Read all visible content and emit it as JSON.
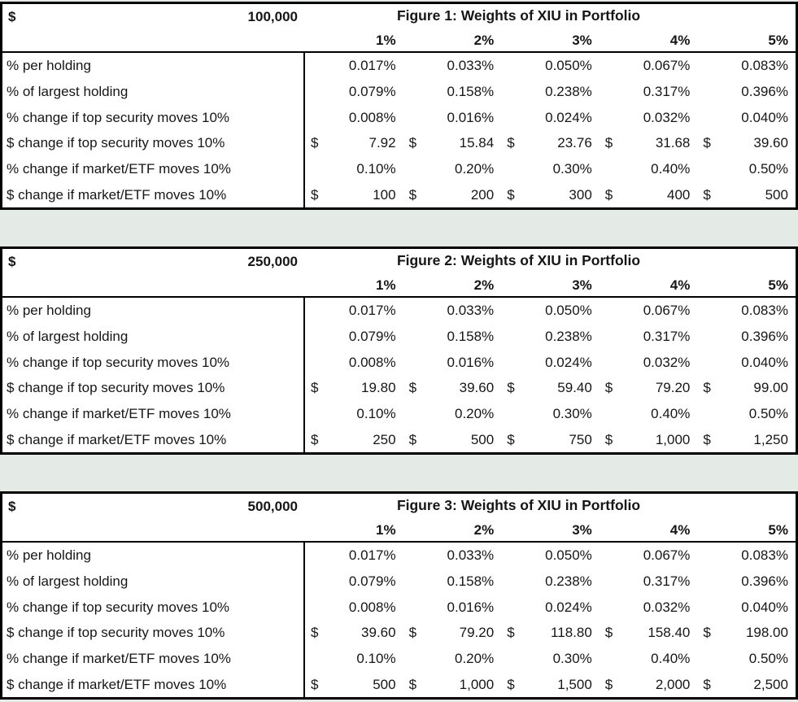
{
  "page": {
    "background_color": "#e4ebe6",
    "table_background": "#ffffff",
    "border_color": "#000000",
    "text_color": "#161616"
  },
  "tables": [
    {
      "currency_symbol": "$",
      "portfolio_value": "100,000",
      "title": "Figure 1: Weights of XIU in Portfolio",
      "column_headers": [
        "1%",
        "2%",
        "3%",
        "4%",
        "5%"
      ],
      "rows": [
        {
          "label": "% per holding",
          "values": [
            "0.017%",
            "0.033%",
            "0.050%",
            "0.067%",
            "0.083%"
          ]
        },
        {
          "label": "% of largest holding",
          "values": [
            "0.079%",
            "0.158%",
            "0.238%",
            "0.317%",
            "0.396%"
          ]
        },
        {
          "label": "% change if top security moves 10%",
          "values": [
            "0.008%",
            "0.016%",
            "0.024%",
            "0.032%",
            "0.040%"
          ]
        },
        {
          "label": "$ change if top security moves 10%",
          "symbol": "$",
          "values": [
            "7.92",
            "15.84",
            "23.76",
            "31.68",
            "39.60"
          ]
        },
        {
          "label": "% change if market/ETF moves 10%",
          "values": [
            "0.10%",
            "0.20%",
            "0.30%",
            "0.40%",
            "0.50%"
          ]
        },
        {
          "label": "$ change if market/ETF moves 10%",
          "symbol": "$",
          "values": [
            "100",
            "200",
            "300",
            "400",
            "500"
          ]
        }
      ]
    },
    {
      "currency_symbol": "$",
      "portfolio_value": "250,000",
      "title": "Figure 2: Weights of XIU in Portfolio",
      "column_headers": [
        "1%",
        "2%",
        "3%",
        "4%",
        "5%"
      ],
      "rows": [
        {
          "label": "% per holding",
          "values": [
            "0.017%",
            "0.033%",
            "0.050%",
            "0.067%",
            "0.083%"
          ]
        },
        {
          "label": "% of largest holding",
          "values": [
            "0.079%",
            "0.158%",
            "0.238%",
            "0.317%",
            "0.396%"
          ]
        },
        {
          "label": "% change if top security moves 10%",
          "values": [
            "0.008%",
            "0.016%",
            "0.024%",
            "0.032%",
            "0.040%"
          ]
        },
        {
          "label": "$ change if top security moves 10%",
          "symbol": "$",
          "values": [
            "19.80",
            "39.60",
            "59.40",
            "79.20",
            "99.00"
          ]
        },
        {
          "label": "% change if market/ETF moves 10%",
          "values": [
            "0.10%",
            "0.20%",
            "0.30%",
            "0.40%",
            "0.50%"
          ]
        },
        {
          "label": "$ change if market/ETF moves 10%",
          "symbol": "$",
          "values": [
            "250",
            "500",
            "750",
            "1,000",
            "1,250"
          ]
        }
      ]
    },
    {
      "currency_symbol": "$",
      "portfolio_value": "500,000",
      "title": "Figure 3: Weights of XIU in Portfolio",
      "column_headers": [
        "1%",
        "2%",
        "3%",
        "4%",
        "5%"
      ],
      "rows": [
        {
          "label": "% per holding",
          "values": [
            "0.017%",
            "0.033%",
            "0.050%",
            "0.067%",
            "0.083%"
          ]
        },
        {
          "label": "% of largest holding",
          "values": [
            "0.079%",
            "0.158%",
            "0.238%",
            "0.317%",
            "0.396%"
          ]
        },
        {
          "label": "% change if top security moves 10%",
          "values": [
            "0.008%",
            "0.016%",
            "0.024%",
            "0.032%",
            "0.040%"
          ]
        },
        {
          "label": "$ change if top security moves 10%",
          "symbol": "$",
          "values": [
            "39.60",
            "79.20",
            "118.80",
            "158.40",
            "198.00"
          ]
        },
        {
          "label": "% change if market/ETF moves 10%",
          "values": [
            "0.10%",
            "0.20%",
            "0.30%",
            "0.40%",
            "0.50%"
          ]
        },
        {
          "label": "$ change if market/ETF moves 10%",
          "symbol": "$",
          "values": [
            "500",
            "1,000",
            "1,500",
            "2,000",
            "2,500"
          ]
        }
      ]
    }
  ]
}
